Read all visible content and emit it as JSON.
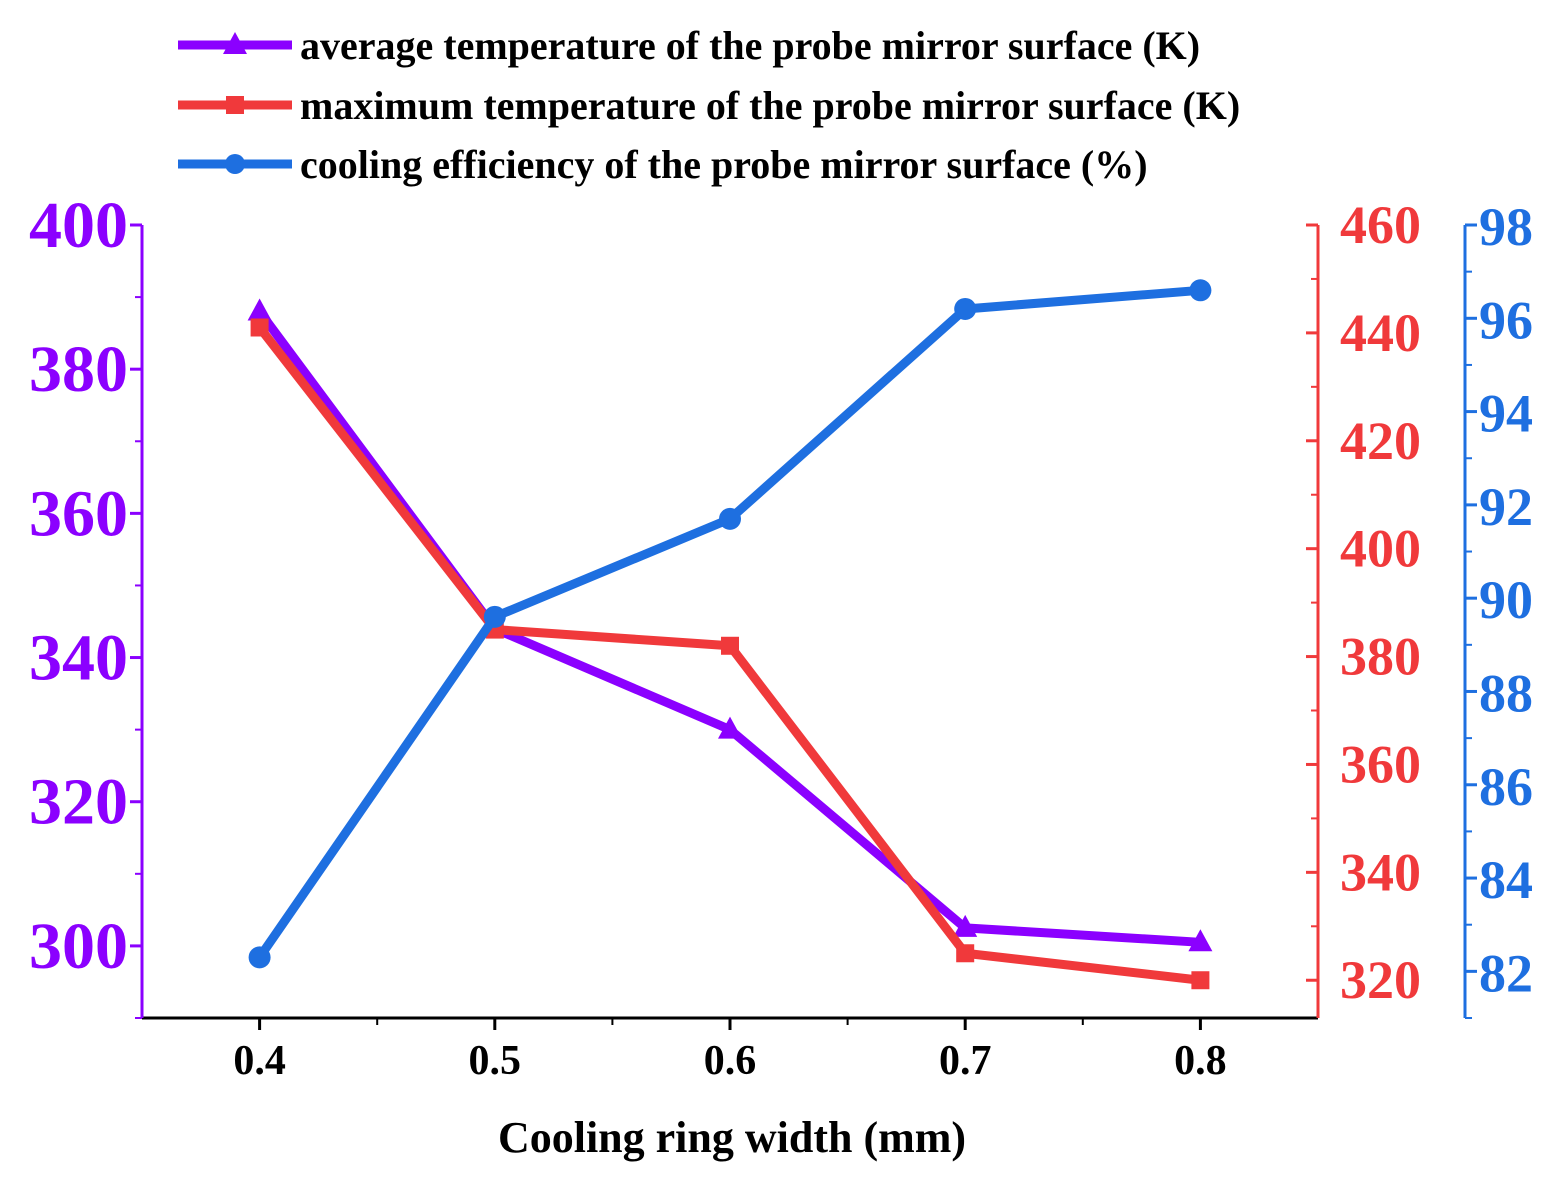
{
  "chart_data": {
    "type": "line",
    "title": "",
    "xlabel": "Cooling ring width (mm)",
    "x": [
      0.4,
      0.5,
      0.6,
      0.7,
      0.8
    ],
    "x_ticks": [
      "0.4",
      "0.5",
      "0.6",
      "0.7",
      "0.8"
    ],
    "xlim": [
      0.35,
      0.85
    ],
    "legend_position": "top",
    "axes": {
      "left": {
        "lim": [
          290,
          400
        ],
        "ticks": [
          "300",
          "320",
          "340",
          "360",
          "380",
          "400"
        ],
        "color": "#8B00FF"
      },
      "right": {
        "lim": [
          313,
          460
        ],
        "ticks": [
          "320",
          "340",
          "360",
          "380",
          "400",
          "420",
          "440",
          "460"
        ],
        "color": "#F0393B"
      },
      "right2": {
        "lim": [
          81,
          98
        ],
        "ticks": [
          "82",
          "84",
          "86",
          "88",
          "90",
          "92",
          "94",
          "96",
          "98"
        ],
        "color": "#1E6FE0"
      }
    },
    "series": [
      {
        "name": "average temperature of the probe mirror surface (K)",
        "axis": "left",
        "marker": "triangle",
        "color": "#8B00FF",
        "values": [
          388,
          344,
          330,
          302.5,
          300.5
        ]
      },
      {
        "name": "maximum temperature of the probe mirror surface (K)",
        "axis": "right",
        "marker": "square",
        "color": "#F0393B",
        "values": [
          441,
          385,
          382,
          325,
          320
        ]
      },
      {
        "name": "cooling efficiency of the probe mirror surface (%)",
        "axis": "right2",
        "marker": "circle",
        "color": "#1E6FE0",
        "values": [
          82.3,
          89.6,
          91.7,
          96.2,
          96.6
        ]
      }
    ]
  }
}
